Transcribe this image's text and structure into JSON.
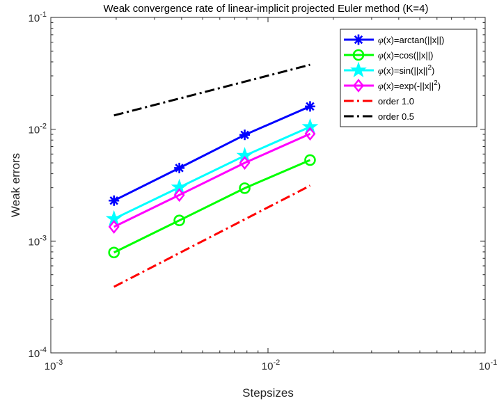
{
  "chart_data": {
    "type": "line",
    "title": "Weak convergence rate of linear-implicit projected Euler method (K=4)",
    "xlabel": "Stepsizes",
    "ylabel": "Weak errors",
    "xscale": "log",
    "yscale": "log",
    "xlim": [
      0.001,
      0.1
    ],
    "ylim": [
      0.0001,
      0.1
    ],
    "xticks": [
      {
        "value": 0.001,
        "base": "10",
        "exp": "-3"
      },
      {
        "value": 0.01,
        "base": "10",
        "exp": "-2"
      },
      {
        "value": 0.1,
        "base": "10",
        "exp": "-1"
      }
    ],
    "yticks": [
      {
        "value": 0.0001,
        "base": "10",
        "exp": "-4"
      },
      {
        "value": 0.001,
        "base": "10",
        "exp": "-3"
      },
      {
        "value": 0.01,
        "base": "10",
        "exp": "-2"
      },
      {
        "value": 0.1,
        "base": "10",
        "exp": "-1"
      }
    ],
    "grid": false,
    "legend_position": "top-right",
    "series": [
      {
        "name": "φ(x)=arctan(||x||)",
        "color": "#0000ff",
        "marker": "asterisk",
        "style": "solid",
        "x": [
          0.001953125,
          0.00390625,
          0.0078125,
          0.015625
        ],
        "y": [
          0.0023,
          0.0045,
          0.0089,
          0.016
        ]
      },
      {
        "name": "φ(x)=cos(||x||)",
        "color": "#00ff00",
        "marker": "circle",
        "style": "solid",
        "x": [
          0.001953125,
          0.00390625,
          0.0078125,
          0.015625
        ],
        "y": [
          0.00079,
          0.00153,
          0.00297,
          0.0053
        ]
      },
      {
        "name": "φ(x)=sin(||x||²)",
        "color": "#00ffff",
        "marker": "pentagram",
        "style": "solid",
        "x": [
          0.001953125,
          0.00390625,
          0.0078125,
          0.015625
        ],
        "y": [
          0.00158,
          0.00302,
          0.0058,
          0.0105
        ]
      },
      {
        "name": "φ(x)=exp(-||x||²)",
        "color": "#ff00ff",
        "marker": "diamond",
        "style": "solid",
        "x": [
          0.001953125,
          0.00390625,
          0.0078125,
          0.015625
        ],
        "y": [
          0.00134,
          0.00258,
          0.005,
          0.0091
        ]
      },
      {
        "name": "order 1.0",
        "color": "#ff0000",
        "marker": "none",
        "style": "dashdot",
        "x": [
          0.001953125,
          0.015625
        ],
        "y": [
          0.00039,
          0.00313
        ]
      },
      {
        "name": "order 0.5",
        "color": "#000000",
        "marker": "none",
        "style": "dashdot",
        "x": [
          0.001953125,
          0.015625
        ],
        "y": [
          0.0133,
          0.0377
        ]
      }
    ],
    "legend_entries": [
      {
        "phi": "φ",
        "rest": "(x)=arctan(||x||)",
        "sup": "",
        "tail": ""
      },
      {
        "phi": "φ",
        "rest": "(x)=cos(||x||)",
        "sup": "",
        "tail": ""
      },
      {
        "phi": "φ",
        "rest": "(x)=sin(||x||",
        "sup": "2",
        "tail": ")"
      },
      {
        "phi": "φ",
        "rest": "(x)=exp(-||x||",
        "sup": "2",
        "tail": ")"
      },
      {
        "phi": "",
        "rest": "order 1.0",
        "sup": "",
        "tail": ""
      },
      {
        "phi": "",
        "rest": "order 0.5",
        "sup": "",
        "tail": ""
      }
    ]
  }
}
